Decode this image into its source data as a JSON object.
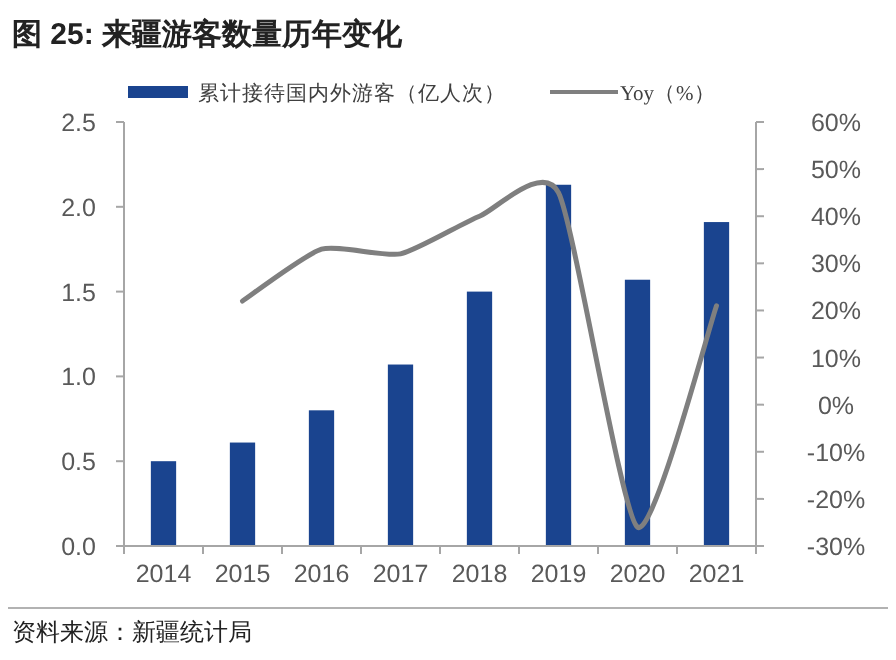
{
  "chart_data": {
    "type": "bar",
    "title": "图 25:  来疆游客数量历年变化",
    "categories": [
      "2014",
      "2015",
      "2016",
      "2017",
      "2018",
      "2019",
      "2020",
      "2021"
    ],
    "series": [
      {
        "name": "累计接待国内外游客（亿人次）",
        "color": "#1a448f",
        "values": [
          0.5,
          0.61,
          0.8,
          1.07,
          1.5,
          2.13,
          1.57,
          1.91
        ]
      },
      {
        "name": "Yoy（%）",
        "type": "line",
        "axis": "y2",
        "color": "#7f7f7f",
        "values": [
          null,
          22,
          33,
          32,
          40,
          45,
          -26,
          21
        ]
      }
    ],
    "ylim": [
      0,
      2.5
    ],
    "yticks": [
      {
        "value": 0,
        "label": "0.0"
      },
      0.5,
      {
        "value": 1,
        "label": "1.0"
      },
      1.5,
      {
        "value": 2,
        "label": "2.0"
      },
      2.5
    ],
    "y2lim": [
      -30,
      60
    ],
    "y2ticks": [
      {
        "value": -30,
        "label": "-30%"
      },
      {
        "value": -20,
        "label": "-20%"
      },
      {
        "value": -10,
        "label": "-10%"
      },
      {
        "value": 0,
        "label": "0%"
      },
      {
        "value": 10,
        "label": "10%"
      },
      {
        "value": 20,
        "label": "20%"
      },
      {
        "value": 30,
        "label": "30%"
      },
      {
        "value": 40,
        "label": "40%"
      },
      {
        "value": 50,
        "label": "50%"
      },
      {
        "value": 60,
        "label": "60%"
      }
    ],
    "legend": "top",
    "annotations": [
      "资料来源：新疆统计局"
    ]
  }
}
